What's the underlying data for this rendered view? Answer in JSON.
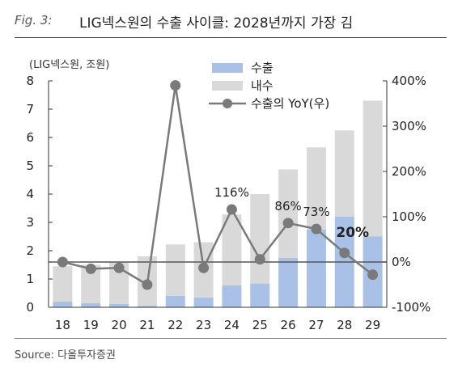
{
  "figure": {
    "label": "Fig. 3:",
    "title": "LIG넥스원의 수출 사이클: 2028년까지 가장 김",
    "source": "Source: 다올투자증권"
  },
  "chart_data": {
    "type": "bar",
    "stacked": true,
    "unit_label": "(LIG넥스원, 조원)",
    "categories": [
      "18",
      "19",
      "20",
      "21",
      "22",
      "23",
      "24",
      "25",
      "26",
      "27",
      "28",
      "29"
    ],
    "series": [
      {
        "name": "수출",
        "axis": "left",
        "color": "#a9c1e6",
        "values": [
          0.2,
          0.15,
          0.12,
          0.05,
          0.4,
          0.35,
          0.78,
          0.84,
          1.75,
          2.75,
          3.2,
          2.5
        ]
      },
      {
        "name": "내수",
        "axis": "left",
        "color": "#d9d9d9",
        "values": [
          1.25,
          1.35,
          1.48,
          1.75,
          1.82,
          1.95,
          2.5,
          3.16,
          3.12,
          2.9,
          3.05,
          4.8
        ]
      },
      {
        "name": "수출의 YoY(우)",
        "axis": "right",
        "type": "line",
        "color": "#7a7a7a",
        "values": [
          0,
          -15,
          -13,
          -50,
          390,
          -13,
          116,
          6,
          86,
          73,
          20,
          -28
        ]
      }
    ],
    "y_left": {
      "min": 0,
      "max": 8,
      "ticks": [
        "0",
        "1",
        "2",
        "3",
        "4",
        "5",
        "6",
        "7",
        "8"
      ]
    },
    "y_right": {
      "min": -100,
      "max": 400,
      "ticks": [
        "-100%",
        "0%",
        "100%",
        "200%",
        "300%",
        "400%"
      ]
    },
    "annotations": [
      {
        "index": 6,
        "text": "116%",
        "bold": false
      },
      {
        "index": 8,
        "text": "86%",
        "bold": false
      },
      {
        "index": 9,
        "text": "73%",
        "bold": false
      },
      {
        "index": 10,
        "text": "20%",
        "bold": true
      }
    ],
    "legend_position": "top-center",
    "grid": false
  }
}
